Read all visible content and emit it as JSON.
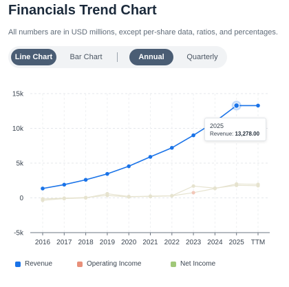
{
  "header": {
    "title": "Financials Trend Chart",
    "subtitle": "All numbers are in USD millions, except per-share data, ratios, and percentages."
  },
  "toggles": {
    "chart_type": [
      {
        "label": "Line Chart",
        "active": true
      },
      {
        "label": "Bar Chart",
        "active": false
      }
    ],
    "period": [
      {
        "label": "Annual",
        "active": true
      },
      {
        "label": "Quarterly",
        "active": false
      }
    ]
  },
  "tooltip": {
    "year": "2025",
    "series_label": "Revenue:",
    "value": "13,278.00"
  },
  "colors": {
    "revenue": "#1a73e8",
    "operating_income": "#e8907a",
    "net_income": "#a0c878",
    "faded": "#e6e3cf"
  },
  "chart_data": {
    "type": "line",
    "categories": [
      "2016",
      "2017",
      "2018",
      "2019",
      "2020",
      "2021",
      "2022",
      "2023",
      "2024",
      "2025",
      "TTM"
    ],
    "y_ticks": [
      "15k",
      "10k",
      "5k",
      "0",
      "-5k"
    ],
    "ylim": [
      -5000,
      15000
    ],
    "series": [
      {
        "name": "Revenue",
        "values": [
          1350,
          1900,
          2600,
          3450,
          4550,
          5900,
          7200,
          9000,
          10950,
          13278,
          13278
        ]
      },
      {
        "name": "Operating Income",
        "values": [
          -150,
          -50,
          50,
          350,
          150,
          250,
          300,
          750,
          1350,
          2000,
          1950
        ]
      },
      {
        "name": "Net Income",
        "values": [
          -350,
          -100,
          0,
          600,
          200,
          200,
          300,
          1700,
          1400,
          1800,
          1750
        ]
      }
    ],
    "grid": true,
    "legend": "bottom"
  }
}
